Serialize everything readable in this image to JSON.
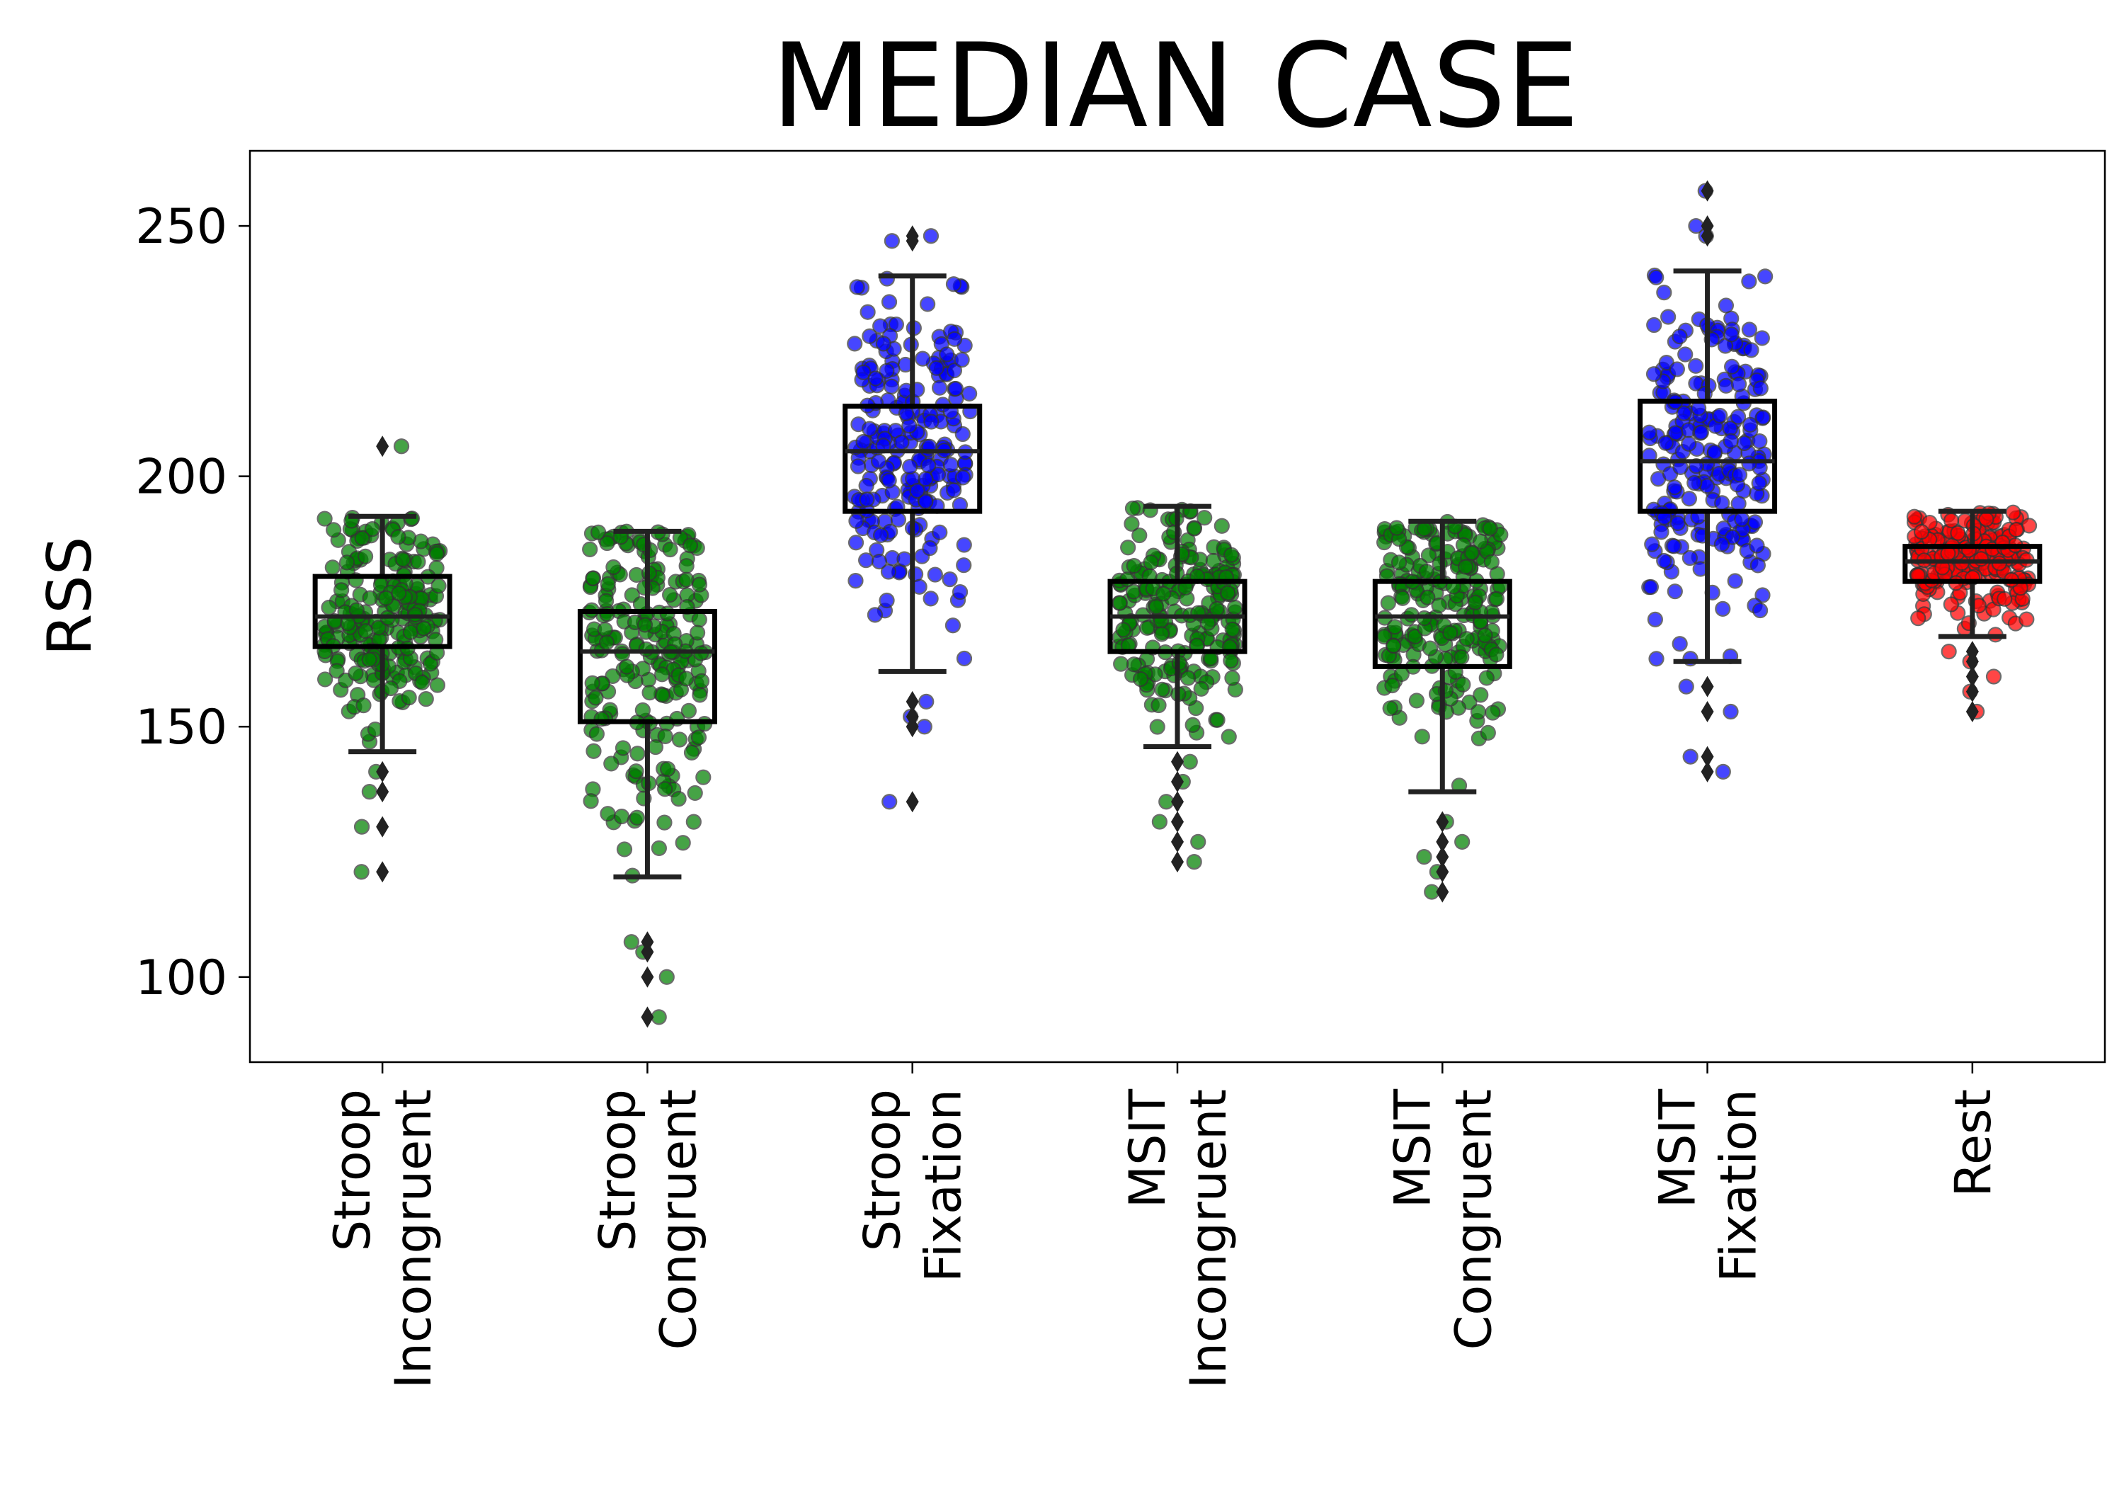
{
  "chart_data": {
    "type": "box",
    "title": "MEDIAN CASE",
    "ylabel": "RSS",
    "xlabel": "",
    "ylim": [
      83,
      265
    ],
    "yticks": [
      100,
      150,
      200,
      250
    ],
    "grid": false,
    "categories": [
      {
        "label_lines": [
          "Stroop",
          "Incongruent"
        ],
        "color": "#008000",
        "q1": 166,
        "median": 172,
        "q3": 180,
        "whisker_low": 145,
        "whisker_high": 192,
        "fliers": [
          206,
          141,
          137,
          130,
          121
        ]
      },
      {
        "label_lines": [
          "Stroop",
          "Congruent"
        ],
        "color": "#008000",
        "q1": 151,
        "median": 165,
        "q3": 173,
        "whisker_low": 120,
        "whisker_high": 189,
        "fliers": [
          107,
          105,
          100,
          92
        ]
      },
      {
        "label_lines": [
          "Stroop",
          "Fixation"
        ],
        "color": "#0000ff",
        "q1": 193,
        "median": 205,
        "q3": 214,
        "whisker_low": 161,
        "whisker_high": 240,
        "fliers": [
          248,
          247,
          155,
          152,
          150,
          135
        ]
      },
      {
        "label_lines": [
          "MSIT",
          "Incongruent"
        ],
        "color": "#008000",
        "q1": 165,
        "median": 172,
        "q3": 179,
        "whisker_low": 146,
        "whisker_high": 194,
        "fliers": [
          143,
          139,
          135,
          131,
          127,
          123
        ]
      },
      {
        "label_lines": [
          "MSIT",
          "Congruent"
        ],
        "color": "#008000",
        "q1": 162,
        "median": 172,
        "q3": 179,
        "whisker_low": 137,
        "whisker_high": 191,
        "fliers": [
          131,
          127,
          124,
          121,
          117
        ]
      },
      {
        "label_lines": [
          "MSIT",
          "Fixation"
        ],
        "color": "#0000ff",
        "q1": 193,
        "median": 203,
        "q3": 215,
        "whisker_low": 163,
        "whisker_high": 241,
        "fliers": [
          257,
          250,
          248,
          158,
          153,
          144,
          141
        ]
      },
      {
        "label_lines": [
          "Rest"
        ],
        "color": "#ff0000",
        "q1": 179,
        "median": 183,
        "q3": 186,
        "whisker_low": 168,
        "whisker_high": 193,
        "fliers": [
          165,
          163,
          160,
          157,
          153
        ]
      }
    ]
  }
}
